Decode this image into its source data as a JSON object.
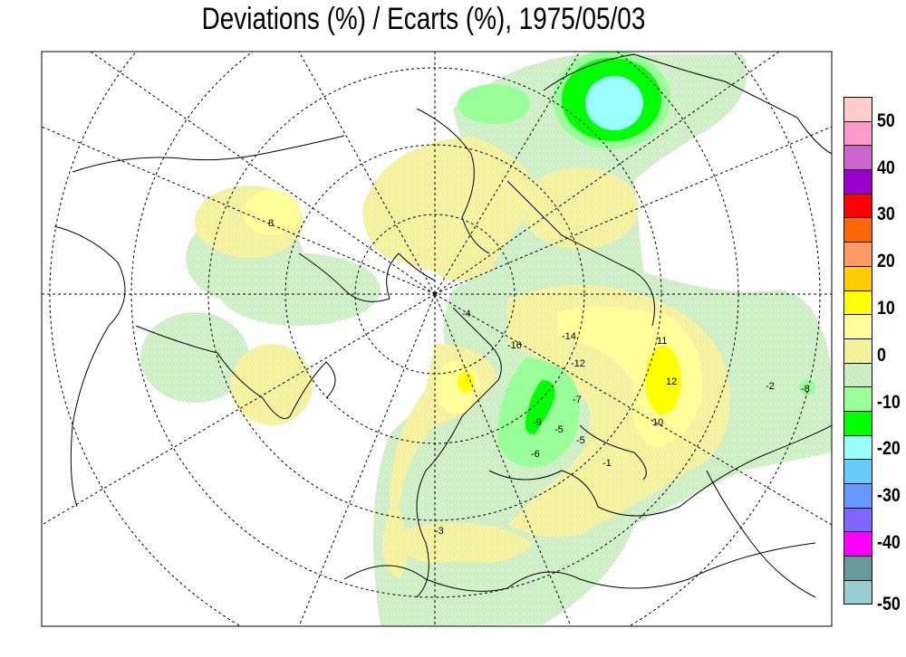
{
  "title": "Deviations (%) / Ecarts (%), 1975/05/03",
  "legend": {
    "colors": [
      "#FFCCCC",
      "#FF99CC",
      "#CC66CC",
      "#9900CC",
      "#FF0000",
      "#FF6600",
      "#FF9966",
      "#FFCC00",
      "#FFFF00",
      "#FFFF99",
      "#F8F4A8",
      "#D4F0CC",
      "#99FF99",
      "#00FF00",
      "#99FFFF",
      "#66CCFF",
      "#6699FF",
      "#8066FF",
      "#FF00FF",
      "#669999",
      "#99CCCC"
    ],
    "labels": [
      "50",
      "40",
      "30",
      "20",
      "10",
      "0",
      "-10",
      "-20",
      "-30",
      "-40",
      "-50"
    ]
  },
  "contour_labels": [
    "-16",
    "-14",
    "-12",
    "-7",
    "-5",
    "-9",
    "-6",
    "-5",
    "12",
    "11",
    "10",
    "-1",
    "-3",
    "-2",
    "-4",
    "-8",
    "8"
  ]
}
